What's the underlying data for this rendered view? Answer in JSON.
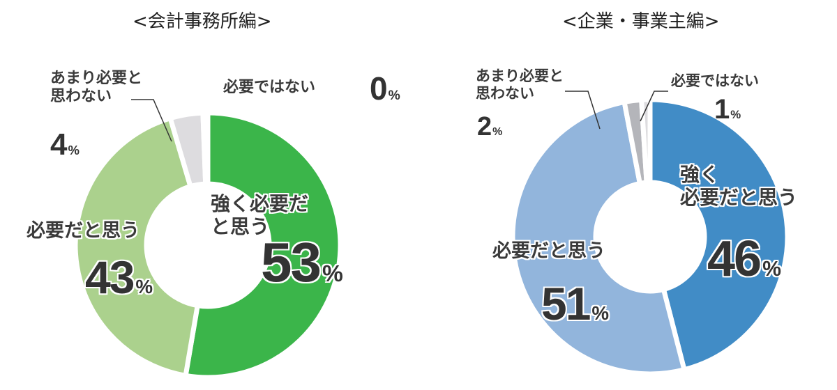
{
  "chart_data": [
    {
      "type": "pie",
      "subtype": "donut",
      "title": "<会計事務所編>",
      "categories": [
        "強く必要だと思う",
        "必要だと思う",
        "あまり必要と思わない",
        "必要ではない"
      ],
      "values": [
        53,
        43,
        4,
        0
      ],
      "unit": "%",
      "colors": [
        "#3bb54a",
        "#abd18d",
        "#dddcdf",
        "#dddcdf"
      ],
      "start_angle": "12 o'clock, clockwise"
    },
    {
      "type": "pie",
      "subtype": "donut",
      "title": "<企業・事業主編>",
      "categories": [
        "強く必要だと思う",
        "必要だと思う",
        "あまり必要と思わない",
        "必要ではない"
      ],
      "values": [
        46,
        51,
        2,
        1
      ],
      "unit": "%",
      "colors": [
        "#418cc6",
        "#92b5dc",
        "#b4b5ba",
        "#dddcdf"
      ],
      "start_angle": "12 o'clock, clockwise"
    }
  ],
  "left": {
    "title": "<会計事務所編>",
    "strong": {
      "label_line1": "強く必要だ",
      "label_line2": "と思う",
      "value": "53",
      "unit": "%"
    },
    "need": {
      "label": "必要だと思う",
      "value": "43",
      "unit": "%"
    },
    "not_much": {
      "label_line1": "あまり必要と",
      "label_line2": "思わない",
      "value": "4",
      "unit": "%"
    },
    "not_needed": {
      "label": "必要ではない",
      "value": "0",
      "unit": "%"
    }
  },
  "right": {
    "title": "<企業・事業主編>",
    "strong": {
      "label_line1": "強く",
      "label_line2": "必要だと思う",
      "value": "46",
      "unit": "%"
    },
    "need": {
      "label": "必要だと思う",
      "value": "51",
      "unit": "%"
    },
    "not_much": {
      "label_line1": "あまり必要と",
      "label_line2": "思わない",
      "value": "2",
      "unit": "%"
    },
    "not_needed": {
      "label": "必要ではない",
      "value": "1",
      "unit": "%"
    }
  }
}
